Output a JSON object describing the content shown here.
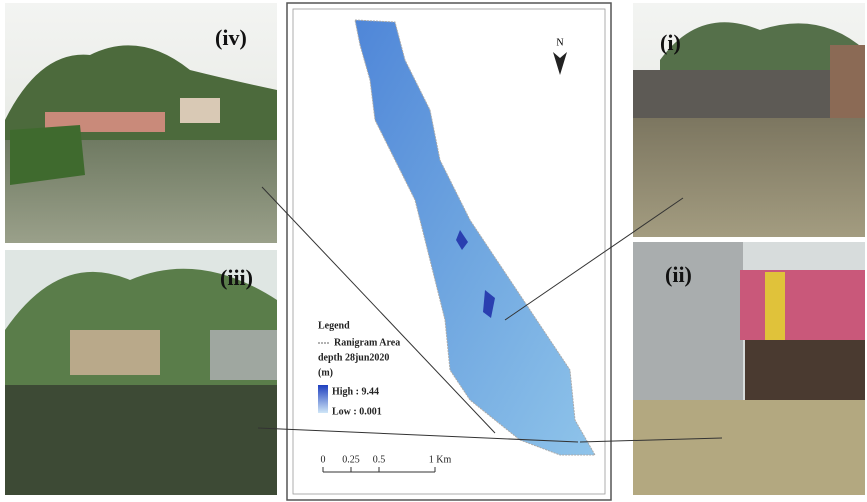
{
  "photos": {
    "iv": "(iv)",
    "i": "(i)",
    "iii": "(iii)",
    "ii": "(ii)"
  },
  "map": {
    "north": "N",
    "legend": {
      "title": "Legend",
      "area": "Ranigram Area",
      "layer": "depth 28jun2020",
      "unit": "(m)",
      "high": "High : 9.44",
      "low": "Low : 0.001"
    },
    "scale": {
      "labels": [
        "0",
        "0.25",
        "0.5",
        "1 Km"
      ]
    }
  }
}
